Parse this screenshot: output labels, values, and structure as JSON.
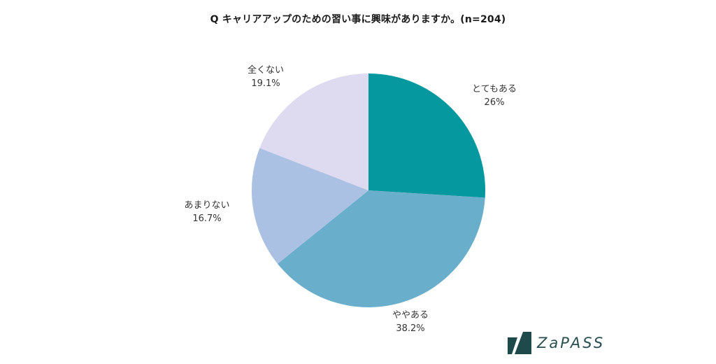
{
  "chart_data": {
    "type": "pie",
    "title": "Q キャリアアップのための習い事に興味がありますか。(n=204)",
    "n": 204,
    "categories": [
      "とてもある",
      "ややある",
      "あまりない",
      "全くない"
    ],
    "values": [
      26,
      38.2,
      16.7,
      19.1
    ],
    "value_labels": [
      "26%",
      "38.2%",
      "16.7%",
      "19.1%"
    ],
    "colors": [
      "#05989E",
      "#69AECA",
      "#ABC1E3",
      "#DEDAF0"
    ],
    "start_angle": "12 o'clock",
    "direction": "clockwise",
    "legend": "none (labels outside slices)"
  },
  "brand": {
    "logo_text": "ZaPASS",
    "logo_color": "#1F4A4C"
  }
}
